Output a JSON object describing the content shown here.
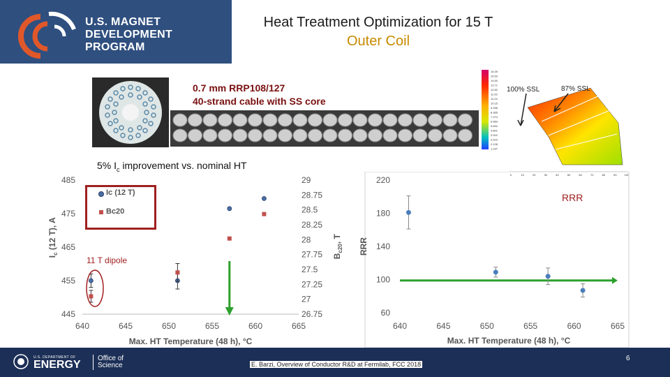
{
  "header": {
    "logo_lines": [
      "U.S. MAGNET",
      "DEVELOPMENT",
      "PROGRAM"
    ],
    "title_line1": "Heat Treatment Optimization for 15 T",
    "title_line2": "Outer Coil",
    "title_accent_color": "#c88a00"
  },
  "sample": {
    "caption_line1": "0.7 mm RRP108/127",
    "caption_line2": "40-strand cable with SS core"
  },
  "simulation": {
    "label_a": "100% SSL",
    "label_b": "87% SSL",
    "colorbar_values": [
      "16.39",
      "15.50",
      "14.60",
      "13.71",
      "12.82",
      "11.93",
      "11.04",
      "10.15",
      "9.256",
      "8.365",
      "7.474",
      "6.583",
      "5.692",
      "4.801",
      "3.910",
      "3.019",
      "2.128",
      "1.237"
    ],
    "axis_ticks": [
      "0",
      "10",
      "20",
      "30",
      "40",
      "50",
      "60",
      "70",
      "80",
      "90",
      "100"
    ]
  },
  "annotation": {
    "improvement_prefix": "5% I",
    "improvement_sub": "c",
    "improvement_suffix": " improvement vs. nominal HT",
    "dipole_label": "11 T dipole",
    "rrr_label": "RRR"
  },
  "chart_data": [
    {
      "type": "scatter",
      "title": "",
      "xlabel": "Max. HT Temperature (48 h), °C",
      "ylabel": "Ic (12 T), A",
      "ylabel_main": "I",
      "ylabel_sub": "c",
      "ylabel_rest": " (12 T), A",
      "y2label": "Bc20, T",
      "y2label_main": "B",
      "y2label_sub": "c20",
      "y2label_rest": ", T",
      "xlim": [
        640,
        665
      ],
      "ylim": [
        445,
        485
      ],
      "y2lim": [
        26.75,
        29
      ],
      "x_ticks": [
        "640",
        "645",
        "650",
        "655",
        "660",
        "665"
      ],
      "y_ticks": [
        "445",
        "455",
        "465",
        "475",
        "485"
      ],
      "y2_ticks": [
        "26.75",
        "27",
        "27.25",
        "27.5",
        "27.75",
        "28",
        "28.25",
        "28.5",
        "28.75",
        "29"
      ],
      "legend": [
        "Ic (12 T)",
        "Bc20"
      ],
      "series": [
        {
          "name": "Ic (12 T)",
          "axis": "left",
          "color": "#4a6fa5",
          "x": [
            641,
            651,
            657,
            661
          ],
          "y": [
            455,
            455,
            476.5,
            479.5
          ],
          "err": [
            2,
            2.5,
            0,
            0
          ]
        },
        {
          "name": "Bc20",
          "axis": "right",
          "color": "#c0504d",
          "x": [
            641,
            651,
            657,
            661
          ],
          "y": [
            27.05,
            27.45,
            28.02,
            28.43
          ],
          "err": [
            0.1,
            0.15,
            0,
            0
          ]
        }
      ],
      "marker_line": {
        "x": 657,
        "color": "#2ca02c"
      }
    },
    {
      "type": "scatter",
      "title": "",
      "xlabel": "Max. HT Temperature (48 h), °C",
      "ylabel": "RRR",
      "xlim": [
        640,
        665
      ],
      "ylim": [
        60,
        220
      ],
      "x_ticks": [
        "640",
        "645",
        "650",
        "655",
        "660",
        "665"
      ],
      "y_ticks": [
        "60",
        "100",
        "140",
        "180",
        "220"
      ],
      "series": [
        {
          "name": "RRR",
          "color": "#4a7ebb",
          "x": [
            641,
            651,
            657,
            661
          ],
          "y": [
            181,
            109,
            104,
            87
          ],
          "err": [
            20,
            6,
            10,
            8
          ]
        }
      ],
      "reference_line": {
        "y": 99,
        "color": "#2ca02c"
      }
    }
  ],
  "footer": {
    "doe_label": "ENERGY",
    "doe_small": "U.S. DEPARTMENT OF",
    "office_line1": "Office of",
    "office_line2": "Science",
    "citation": "E. Barzi, Overview of Conductor R&D at Fermilab, FCC 2018",
    "page_number": "6"
  }
}
